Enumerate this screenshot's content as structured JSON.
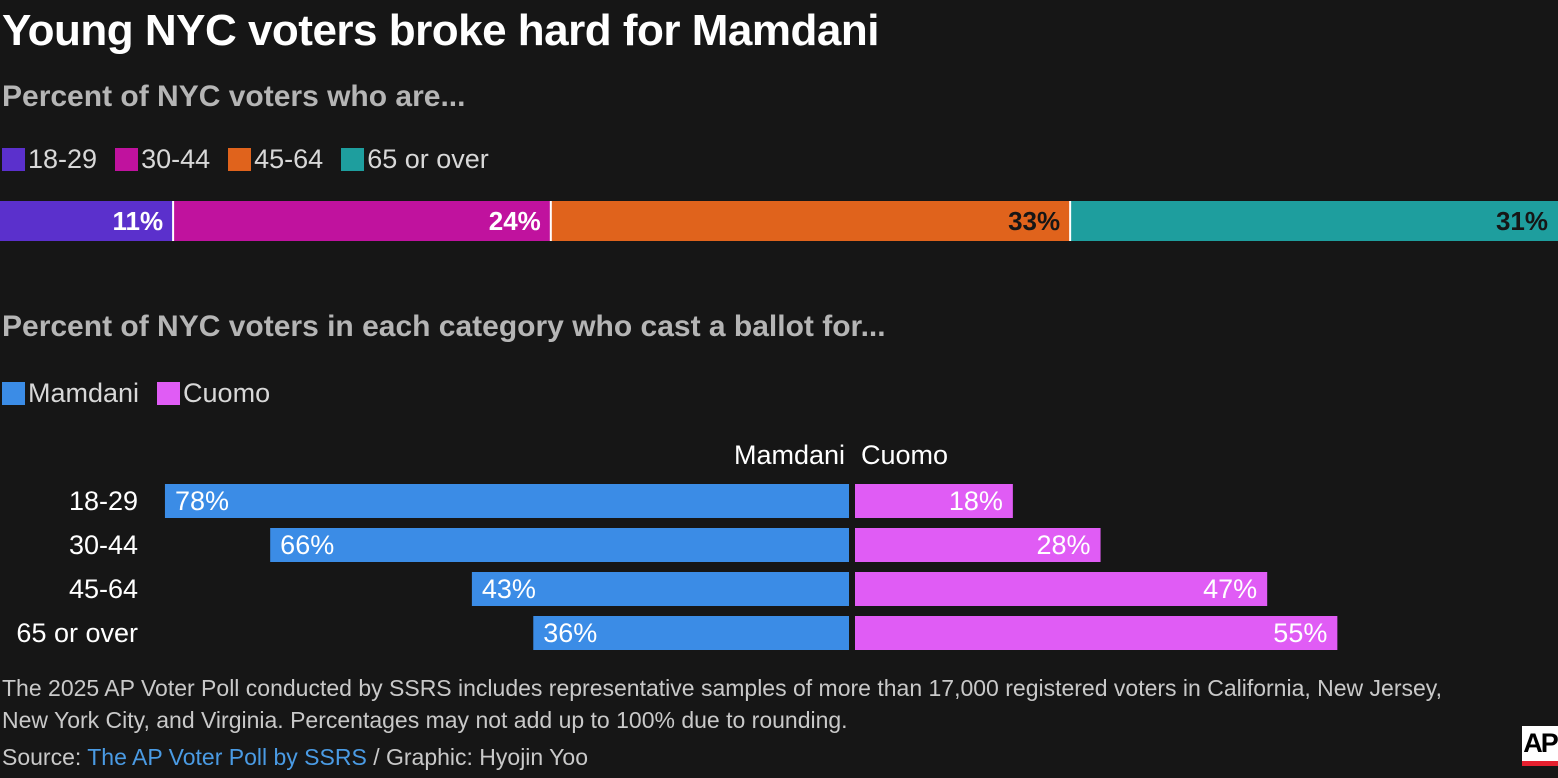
{
  "title": "Young NYC voters broke hard for Mamdani",
  "colors": {
    "background": "#161616",
    "age_18_29": "#5b30cc",
    "age_30_44": "#c0129e",
    "age_45_64": "#e0631c",
    "age_65_over": "#1e9e9e",
    "mamdani": "#3b8ce6",
    "cuomo": "#e05cf5",
    "link": "#4a9be4"
  },
  "chart_data": [
    {
      "type": "bar",
      "orientation": "horizontal",
      "stacked": true,
      "title": "Percent of NYC voters who are...",
      "categories": [
        "18-29",
        "30-44",
        "45-64",
        "65 or over"
      ],
      "values": [
        11,
        24,
        33,
        31
      ],
      "labels": [
        "11%",
        "24%",
        "33%",
        "31%"
      ],
      "legend": [
        "18-29",
        "30-44",
        "45-64",
        "65 or over"
      ],
      "legend_position": "top-left",
      "xlim": [
        0,
        99
      ]
    },
    {
      "type": "bar",
      "orientation": "horizontal",
      "diverging": true,
      "title": "Percent of NYC voters in each category who cast a ballot for...",
      "categories": [
        "18-29",
        "30-44",
        "45-64",
        "65 or over"
      ],
      "legend": [
        "Mamdani",
        "Cuomo"
      ],
      "legend_position": "top-left",
      "column_headers": [
        "Mamdani",
        "Cuomo"
      ],
      "series": [
        {
          "name": "Mamdani",
          "values": [
            78,
            66,
            43,
            36
          ],
          "labels": [
            "78%",
            "66%",
            "43%",
            "36%"
          ]
        },
        {
          "name": "Cuomo",
          "values": [
            18,
            28,
            47,
            55
          ],
          "labels": [
            "18%",
            "28%",
            "47%",
            "55%"
          ]
        }
      ],
      "xlim": [
        -78,
        78
      ]
    }
  ],
  "note": "The 2025 AP Voter Poll conducted by SSRS includes representative samples of more than 17,000 registered voters in California, New Jersey, New York City, and Virginia. Percentages may not add up to 100% due to rounding.",
  "source": {
    "prefix": "Source: ",
    "link_text": "The AP Voter Poll by SSRS",
    "suffix": " / Graphic: Hyojin Yoo"
  },
  "logo_text": "AP"
}
